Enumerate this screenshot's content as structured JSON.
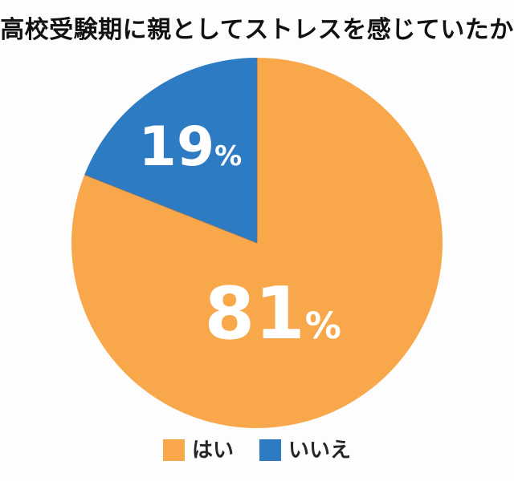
{
  "title": "高校受験期に親としてストレスを感じていたか",
  "chart_data": {
    "type": "pie",
    "title": "高校受験期に親としてストレスを感じていたか",
    "labels": [
      "はい",
      "いいえ"
    ],
    "values": [
      81,
      19
    ],
    "unit": "%",
    "colors": [
      "#F8A74A",
      "#2D7BC3"
    ],
    "value_label_color": "#FFFFFF",
    "start_angle_deg": 0,
    "direction": "clockwise",
    "legend_position": "bottom",
    "background": "#FDFDFD"
  }
}
